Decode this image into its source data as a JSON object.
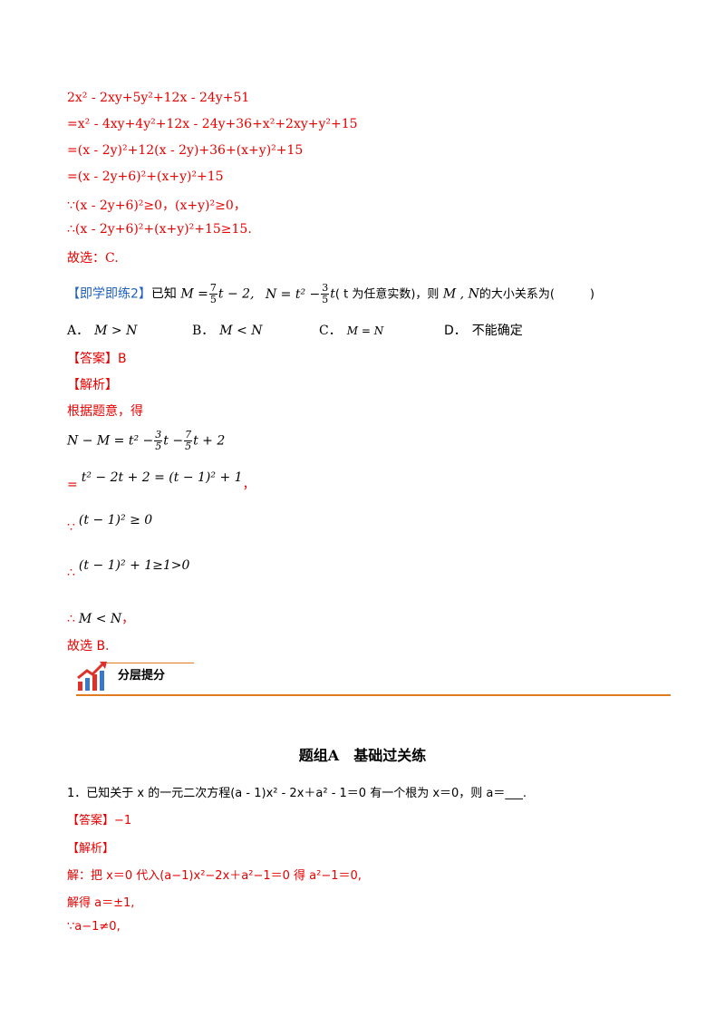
{
  "solution1": {
    "line1": "2x² - 2xy+5y²+12x - 24y+51",
    "line2": "=x² - 4xy+4y²+12x - 24y+36+x²+2xy+y²+15",
    "line3": "=(x - 2y)²+12(x - 2y)+36+(x+y)²+15",
    "line4": "=(x - 2y+6)²+(x+y)²+15",
    "line5": "∵(x - 2y+6)²≥0，(x+y)²≥0，",
    "line6": "∴(x - 2y+6)²+(x+y)²+15≥15.",
    "line7": "故选：C."
  },
  "exercise2": {
    "tag": "【即学即练2】",
    "prefix": "已知",
    "m_def": "M =",
    "m_frac_num": "7",
    "m_frac_den": "5",
    "m_tail": "t − 2,",
    "n_def": "N = t² −",
    "n_frac_num": "3",
    "n_frac_den": "5",
    "n_tail": "t",
    "t_note": "( t 为任意实数)，则",
    "mn": "M , N",
    "suffix": "的大小关系为(　　　)",
    "options": {
      "a_label": "A．",
      "a_text": "M > N",
      "b_label": "B．",
      "b_text": "M < N",
      "c_label": "C．",
      "c_text": "M = N",
      "d_label": "D．",
      "d_text": "不能确定"
    },
    "answer_label": "【答案】B",
    "analysis_label": "【解析】",
    "analysis_intro": "根据题意，得",
    "step1_lhs": "N − M = t² −",
    "step1_f1_num": "3",
    "step1_f1_den": "5",
    "step1_mid": "t −",
    "step1_f2_num": "7",
    "step1_f2_den": "5",
    "step1_tail": "t + 2",
    "step2_eq": "=",
    "step2": "t² − 2t + 2 = (t − 1)² + 1",
    "step2_comma": "，",
    "step3_sym": "∵",
    "step3": "(t − 1)² ≥ 0",
    "step4_sym": "∴",
    "step4": "(t − 1)² + 1≥1>0",
    "step5_sym": "∴",
    "step5": "M < N",
    "step5_comma": "，",
    "conclusion": "故选 B."
  },
  "section": {
    "label": "分层提分",
    "colors": {
      "accent": "#e07b20",
      "icon_red": "#e0302a",
      "icon_blue": "#3a78c9"
    }
  },
  "group_a": {
    "title": "题组A　基础过关练",
    "q1_text": "1．已知关于 x 的一元二次方程(a - 1)x² - 2x＋a² - 1＝0 有一个根为 x＝0，则 a＝___.",
    "answer_label": "【答案】",
    "answer_value": "−1",
    "analysis_label": "【解析】",
    "sol1": "解：把 x＝0 代入(a−1)x²−2x＋a²−1＝0 得 a²−1＝0,",
    "sol2": "解得 a＝±1,",
    "sol3": "∵a−1≠0,"
  }
}
